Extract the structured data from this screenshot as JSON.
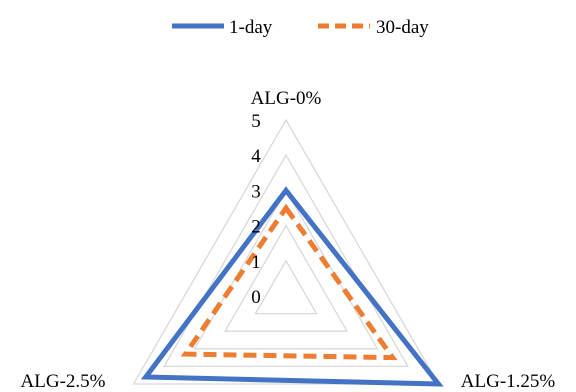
{
  "chart_data": {
    "type": "radar",
    "axes": [
      "ALG-0%",
      "ALG-1.25%",
      "ALG-2.5%"
    ],
    "rlim": [
      0,
      5
    ],
    "ticks": [
      "0",
      "1",
      "2",
      "3",
      "4",
      "5"
    ],
    "grid": true,
    "legend": "top",
    "series": [
      {
        "name": "1-day",
        "values": [
          3.0,
          5.0,
          4.6
        ],
        "color": "#4472C4",
        "style": "solid"
      },
      {
        "name": "30-day",
        "values": [
          2.5,
          3.5,
          3.3
        ],
        "color": "#ED7D31",
        "style": "dashed"
      }
    ]
  }
}
